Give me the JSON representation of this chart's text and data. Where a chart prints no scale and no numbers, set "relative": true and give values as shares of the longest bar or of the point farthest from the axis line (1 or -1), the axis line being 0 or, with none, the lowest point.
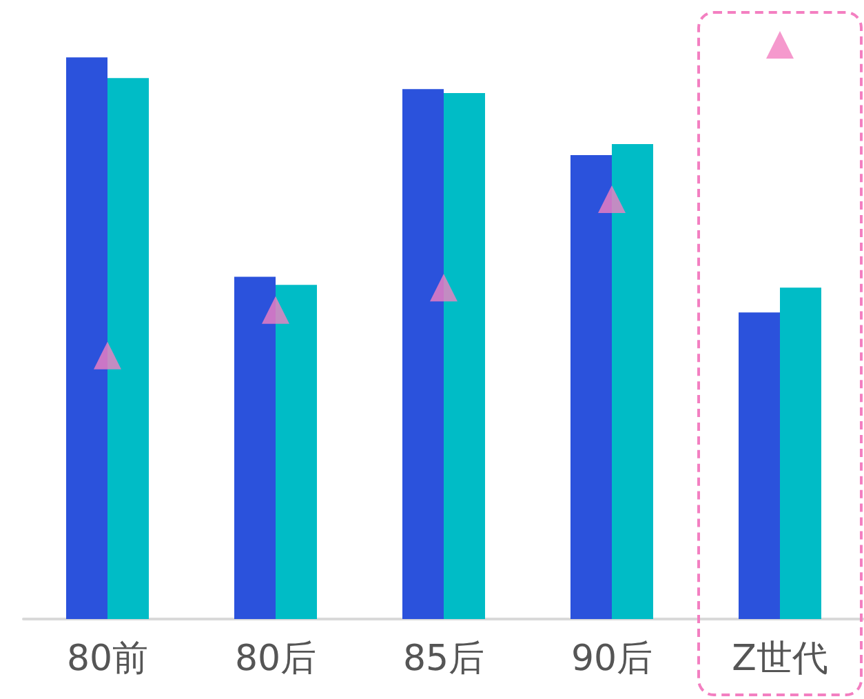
{
  "chart_data": {
    "type": "bar",
    "relative": true,
    "categories": [
      "80前",
      "80后",
      "85后",
      "90后",
      "Z世代"
    ],
    "series": [
      {
        "color": "#2b52dc",
        "values": [
          0.978,
          0.596,
          0.923,
          0.808,
          0.534
        ]
      },
      {
        "color": "#00bcc6",
        "values": [
          0.942,
          0.582,
          0.916,
          0.827,
          0.577
        ]
      },
      {
        "type": "scatter",
        "color": "#f37fc1",
        "marker": "triangle",
        "x": [
          "80前",
          "80后",
          "85后",
          "90后",
          "Z世代"
        ],
        "values": [
          0.459,
          0.538,
          0.577,
          0.731,
          1
        ]
      }
    ],
    "grid": false
  }
}
